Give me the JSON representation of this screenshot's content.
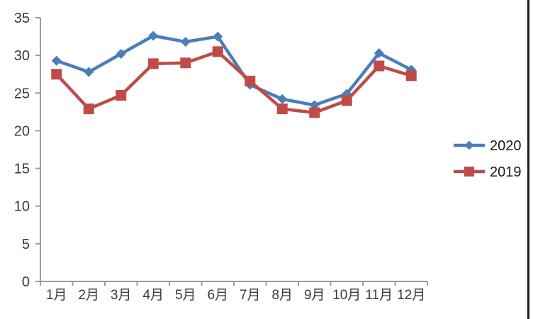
{
  "chart_data": {
    "type": "line",
    "categories": [
      "1月",
      "2月",
      "3月",
      "4月",
      "5月",
      "6月",
      "7月",
      "8月",
      "9月",
      "10月",
      "11月",
      "12月"
    ],
    "series": [
      {
        "name": "2020",
        "marker": "diamond",
        "color": "#4A7EBB",
        "values": [
          29.3,
          27.8,
          30.2,
          32.6,
          31.8,
          32.5,
          26.1,
          24.2,
          23.4,
          24.9,
          30.3,
          28.1
        ]
      },
      {
        "name": "2019",
        "marker": "square",
        "color": "#BF4B48",
        "values": [
          27.5,
          22.9,
          24.7,
          28.9,
          29.0,
          30.5,
          26.6,
          22.9,
          22.4,
          24.0,
          28.6,
          27.3
        ]
      }
    ],
    "title": "",
    "xlabel": "",
    "ylabel": "",
    "ylim": [
      0,
      35
    ],
    "ytick_step": 5,
    "yticks": [
      "0",
      "5",
      "10",
      "15",
      "20",
      "25",
      "30",
      "35"
    ],
    "grid": false,
    "legend_position": "right",
    "colors": {
      "axis": "#9B9B9B",
      "tick_label": "#3A3A3A",
      "legend_text": "#1A1A1A",
      "page_right_border": "#1F1F1F",
      "background": "#FFFFFF"
    }
  }
}
